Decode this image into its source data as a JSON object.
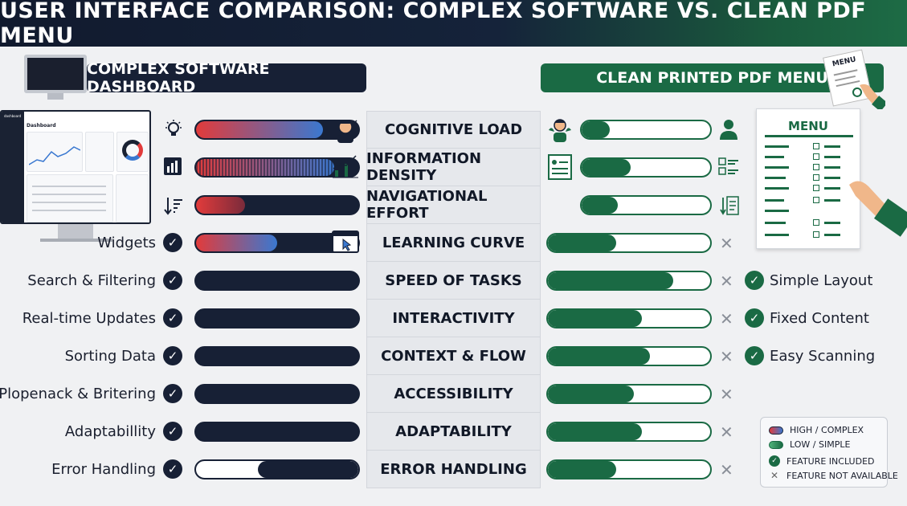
{
  "title": "USER INTERFACE COMPARISON: COMPLEX SOFTWARE VS. CLEAN PDF MENU",
  "left_header": "COMPLEX SOFTWARE DASHBOARD",
  "right_header": "CLEAN PRINTED PDF MENU",
  "dashboard_mock": {
    "title": "Dashboard",
    "brand": "dashboard"
  },
  "menu_doc": {
    "title": "MENU",
    "clip_title": "MENU"
  },
  "rows": [
    {
      "label": "COGNITIVE LOAD",
      "left_feature": "",
      "right_feature": "",
      "left_level": 0.78,
      "right_level": 0.22,
      "left_style": "gradient",
      "right_mark": "none"
    },
    {
      "label": "INFORMATION DENSITY",
      "left_feature": "",
      "right_feature": "",
      "left_level": 0.85,
      "right_level": 0.38,
      "left_style": "striped",
      "right_mark": "none"
    },
    {
      "label": "NAVIGATIONAL EFFORT",
      "left_feature": "",
      "right_feature": "",
      "left_level": 0.3,
      "right_level": 0.28,
      "left_style": "gradient-short",
      "right_mark": "none"
    },
    {
      "label": "LEARNING CURVE",
      "left_feature": "Widgets",
      "right_feature": "",
      "left_level": 0.5,
      "right_level": 0.42,
      "left_style": "gradient",
      "right_mark": "x"
    },
    {
      "label": "SPEED OF TASKS",
      "left_feature": "Search & Filtering",
      "right_feature": "Simple Layout",
      "left_level": 1.0,
      "right_level": 0.77,
      "left_style": "solid",
      "right_mark": "x"
    },
    {
      "label": "INTERACTIVITY",
      "left_feature": "Real-time Updates",
      "right_feature": "Fixed Content",
      "left_level": 1.0,
      "right_level": 0.58,
      "left_style": "solid",
      "right_mark": "x"
    },
    {
      "label": "CONTEXT & FLOW",
      "left_feature": "Sorting Data",
      "right_feature": "Easy Scanning",
      "left_level": 1.0,
      "right_level": 0.63,
      "left_style": "solid",
      "right_mark": "x"
    },
    {
      "label": "ACCESSIBILITY",
      "left_feature": "Plopenack & Britering",
      "right_feature": "",
      "left_level": 1.0,
      "right_level": 0.53,
      "left_style": "solid",
      "right_mark": "x"
    },
    {
      "label": "ADAPTABILITY",
      "left_feature": "Adaptabillity",
      "right_feature": "",
      "left_level": 1.0,
      "right_level": 0.58,
      "left_style": "solid",
      "right_mark": "x"
    },
    {
      "label": "ERROR HANDLING",
      "left_feature": "Error Handling",
      "right_feature": "",
      "left_level": 0.62,
      "right_level": 0.42,
      "left_style": "partial",
      "right_mark": "x"
    }
  ],
  "legend": {
    "high": "HIGH / COMPLEX",
    "low": "LOW / SIMPLE",
    "included": "FEATURE INCLUDED",
    "not_available": "FEATURE NOT AVAILABLE"
  },
  "colors": {
    "navy": "#172035",
    "green": "#1a6a44",
    "red": "#e23b3b",
    "blue": "#3a78d0"
  }
}
